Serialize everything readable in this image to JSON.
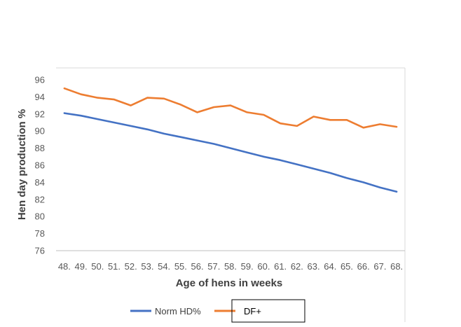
{
  "chart_data": {
    "type": "line",
    "title": "",
    "xlabel": "Age of hens in weeks",
    "ylabel": "Hen day production %",
    "ylim": [
      76,
      96
    ],
    "yticks": [
      76,
      78,
      80,
      82,
      84,
      86,
      88,
      90,
      92,
      94,
      96
    ],
    "grid": false,
    "legend": "bottom",
    "categories": [
      "48.",
      "49.",
      "50.",
      "51.",
      "52.",
      "53.",
      "54.",
      "55.",
      "56.",
      "57.",
      "58.",
      "59.",
      "60.",
      "61.",
      "62.",
      "63.",
      "64.",
      "65.",
      "66.",
      "67.",
      "68."
    ],
    "series": [
      {
        "name": "Norm HD%",
        "color": "#4472C4",
        "values": [
          92.1,
          91.8,
          91.4,
          91.0,
          90.6,
          90.2,
          89.7,
          89.3,
          88.9,
          88.5,
          88.0,
          87.5,
          87.0,
          86.6,
          86.1,
          85.6,
          85.1,
          84.5,
          84.0,
          83.4,
          82.9
        ]
      },
      {
        "name": "DF+",
        "color": "#ED7D31",
        "values": [
          95.0,
          94.3,
          93.9,
          93.7,
          93.0,
          93.9,
          93.8,
          93.1,
          92.2,
          92.8,
          93.0,
          92.2,
          91.9,
          90.9,
          90.6,
          91.7,
          91.3,
          91.3,
          90.4,
          90.8,
          90.5
        ]
      }
    ]
  }
}
